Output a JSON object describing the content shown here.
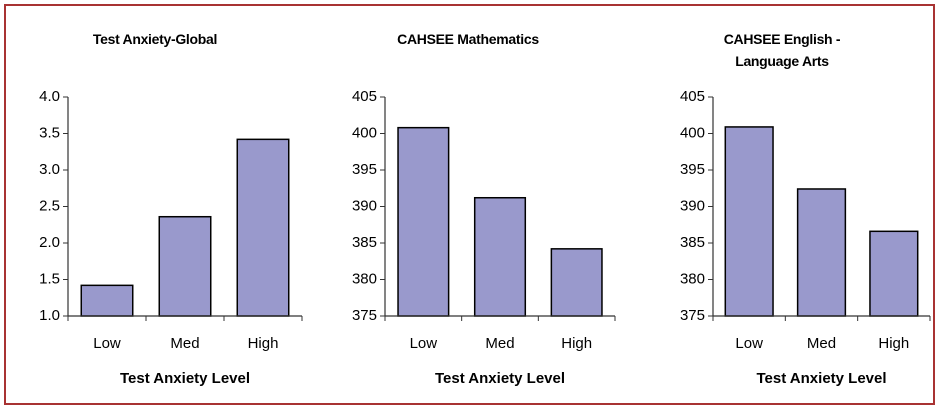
{
  "chart_data": [
    {
      "type": "bar",
      "title": "Test Anxiety-Global",
      "x_label": "Test Anxiety Level",
      "categories": [
        "Low",
        "Med",
        "High"
      ],
      "values": [
        1.42,
        2.36,
        3.42
      ],
      "color": "#9999cc",
      "ylim": [
        1,
        4
      ],
      "yticks": [
        {
          "value": 1,
          "label": "1.0"
        },
        1.5,
        {
          "value": 2,
          "label": "2.0"
        },
        2.5,
        {
          "value": 3,
          "label": "3.0"
        },
        3.5,
        {
          "value": 4,
          "label": "4.0"
        }
      ],
      "grid": false
    },
    {
      "type": "bar",
      "title": "CAHSEE Mathematics",
      "x_label": "Test Anxiety Level",
      "categories": [
        "Low",
        "Med",
        "High"
      ],
      "values": [
        400.8,
        391.2,
        384.2
      ],
      "color": "#9999cc",
      "ylim": [
        375,
        405
      ],
      "yticks": [
        375,
        380,
        385,
        390,
        395,
        400,
        405
      ],
      "grid": false
    },
    {
      "type": "bar",
      "title": "CAHSEE English - Language Arts",
      "x_label": "Test Anxiety Level",
      "categories": [
        "Low",
        "Med",
        "High"
      ],
      "values": [
        400.9,
        392.4,
        386.6
      ],
      "color": "#9999cc",
      "ylim": [
        375,
        405
      ],
      "yticks": [
        375,
        380,
        385,
        390,
        395,
        400,
        405
      ],
      "grid": false
    }
  ]
}
